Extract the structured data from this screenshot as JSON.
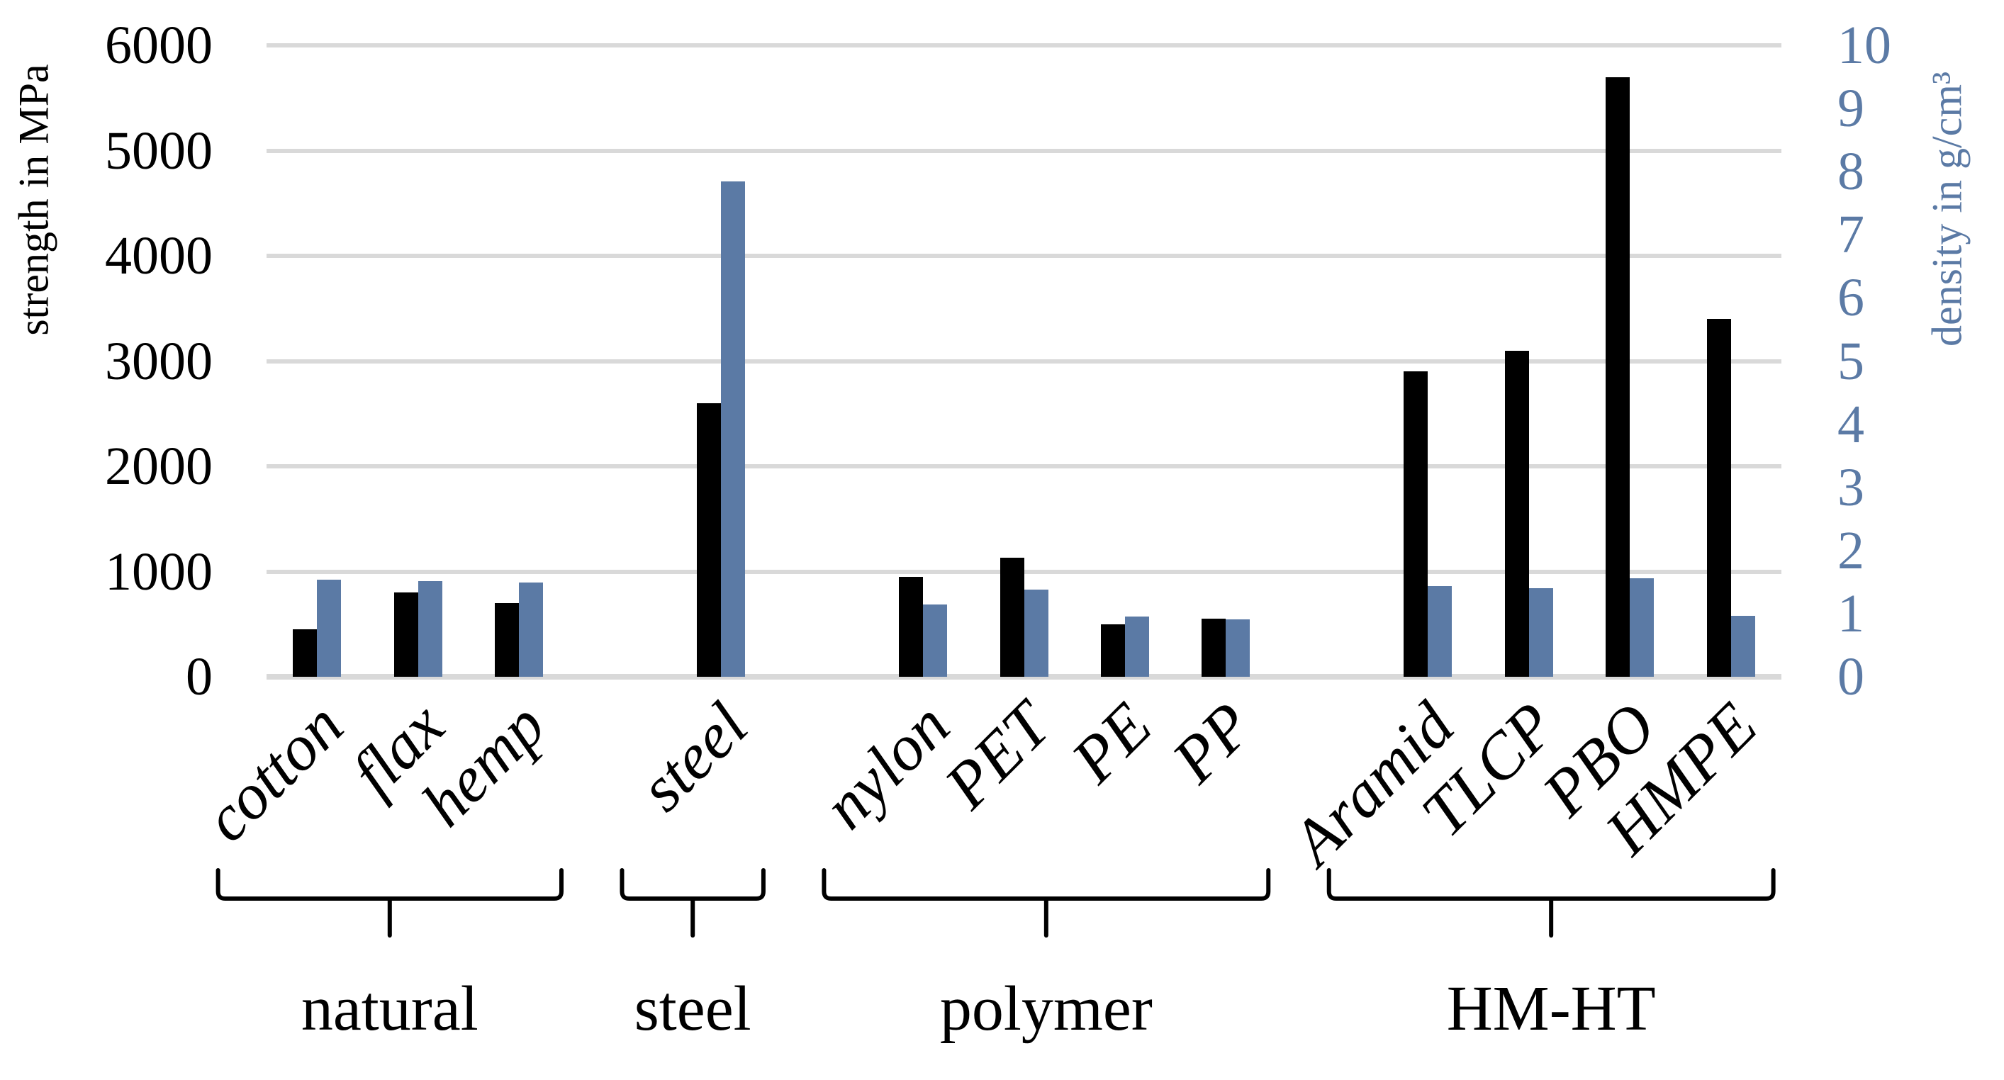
{
  "chart_data": {
    "type": "bar",
    "categories": [
      "cotton",
      "flax",
      "hemp",
      "steel",
      "nylon",
      "PET",
      "PE",
      "PP",
      "Aramid",
      "TLCP",
      "PBO",
      "HMPE"
    ],
    "series": [
      {
        "name": "strength",
        "axis": "left",
        "color": "#000000",
        "values": [
          450,
          800,
          700,
          2600,
          950,
          1130,
          500,
          550,
          2900,
          3100,
          5700,
          3400
        ]
      },
      {
        "name": "density",
        "axis": "right",
        "color": "#5b7aa5",
        "values": [
          1.54,
          1.52,
          1.49,
          7.85,
          1.14,
          1.38,
          0.95,
          0.91,
          1.44,
          1.4,
          1.56,
          0.97
        ]
      }
    ],
    "groups": [
      {
        "label": "natural",
        "from": 0,
        "to": 2
      },
      {
        "label": "steel",
        "from": 3,
        "to": 3
      },
      {
        "label": "polymer",
        "from": 4,
        "to": 7
      },
      {
        "label": "HM-HT",
        "from": 8,
        "to": 11
      }
    ],
    "y_left": {
      "title": "strength in MPa",
      "min": 0,
      "max": 6000,
      "step": 1000,
      "tick_labels": [
        "0",
        "1000",
        "2000",
        "3000",
        "4000",
        "5000",
        "6000"
      ],
      "color": "#000000"
    },
    "y_right": {
      "title": "density in g/cm³",
      "min": 0,
      "max": 10,
      "step": 1,
      "tick_labels": [
        "0",
        "1",
        "2",
        "3",
        "4",
        "5",
        "6",
        "7",
        "8",
        "9",
        "10"
      ],
      "color": "#5b7aa5"
    },
    "grid": true,
    "gridline_color": "#d9d9d9",
    "background": "#ffffff",
    "legend": "none"
  }
}
